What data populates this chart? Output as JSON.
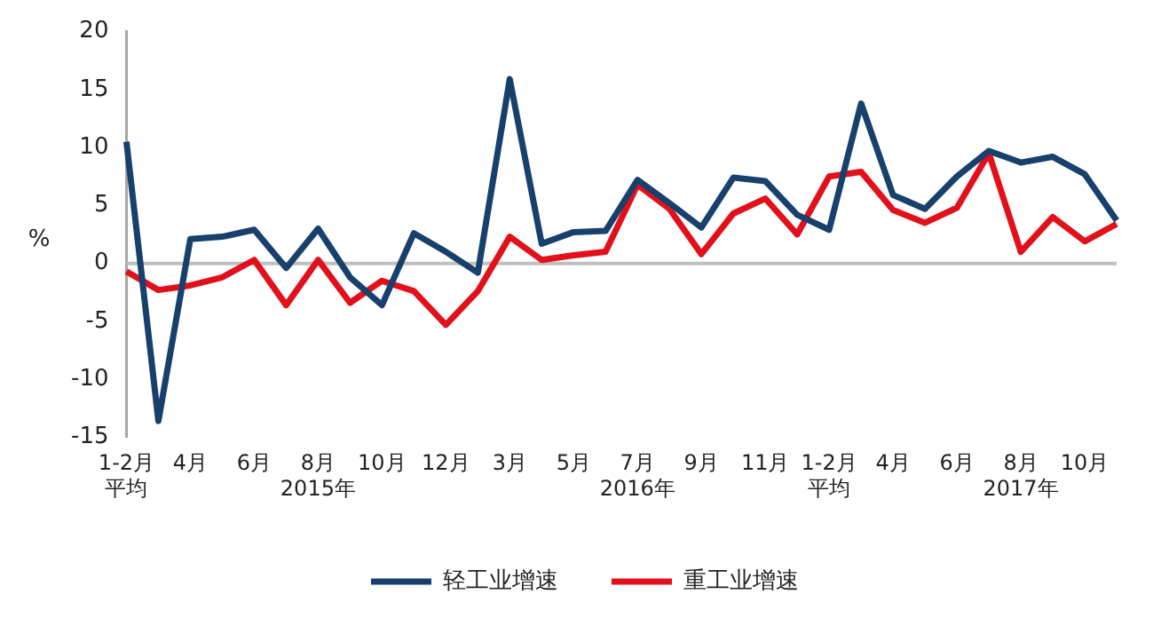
{
  "chart_data": {
    "type": "line",
    "ylabel": "%",
    "categories": [
      "1-2月平均",
      null,
      "4月",
      null,
      "6月",
      null,
      "8月\n2015年",
      null,
      "10月",
      null,
      "12月",
      null,
      "3月",
      null,
      "5月",
      null,
      "7月\n2016年",
      null,
      "9月",
      null,
      "11月",
      null,
      "1-2月平均",
      null,
      "4月",
      null,
      "6月",
      null,
      "8月\n2017年",
      null,
      "10月",
      null
    ],
    "series": [
      {
        "name": "轻工业增速",
        "color": "#17406d",
        "values": [
          10.5,
          -13.6,
          2.1,
          2.3,
          2.9,
          -0.4,
          3.0,
          -1.2,
          -3.6,
          2.6,
          1.0,
          -0.8,
          15.9,
          1.7,
          2.7,
          2.8,
          7.2,
          5.2,
          3.1,
          7.4,
          7.1,
          4.2,
          2.9,
          13.8,
          5.9,
          4.7,
          7.5,
          9.7,
          8.7,
          9.2,
          7.7,
          3.7
        ]
      },
      {
        "name": "重工业增速",
        "color": "#e2101a",
        "values": [
          -0.7,
          -2.3,
          -1.9,
          -1.2,
          0.3,
          -3.6,
          0.3,
          -3.4,
          -1.5,
          -2.4,
          -5.3,
          -2.4,
          2.3,
          0.3,
          0.7,
          1.0,
          6.8,
          4.7,
          0.8,
          4.3,
          5.6,
          2.5,
          7.5,
          7.9,
          4.6,
          3.5,
          4.8,
          9.5,
          1.0,
          4.0,
          1.9,
          3.4
        ]
      }
    ],
    "ylim": [
      -15,
      20
    ],
    "yticks": [
      -15,
      -10,
      -5,
      0,
      5,
      10,
      15,
      20
    ],
    "ref_lines": [
      {
        "axis": "y",
        "value": 0,
        "color": "#bfbfbf"
      }
    ],
    "legend": "bottom",
    "marker": "none",
    "line_style": "solid",
    "grid": false
  }
}
